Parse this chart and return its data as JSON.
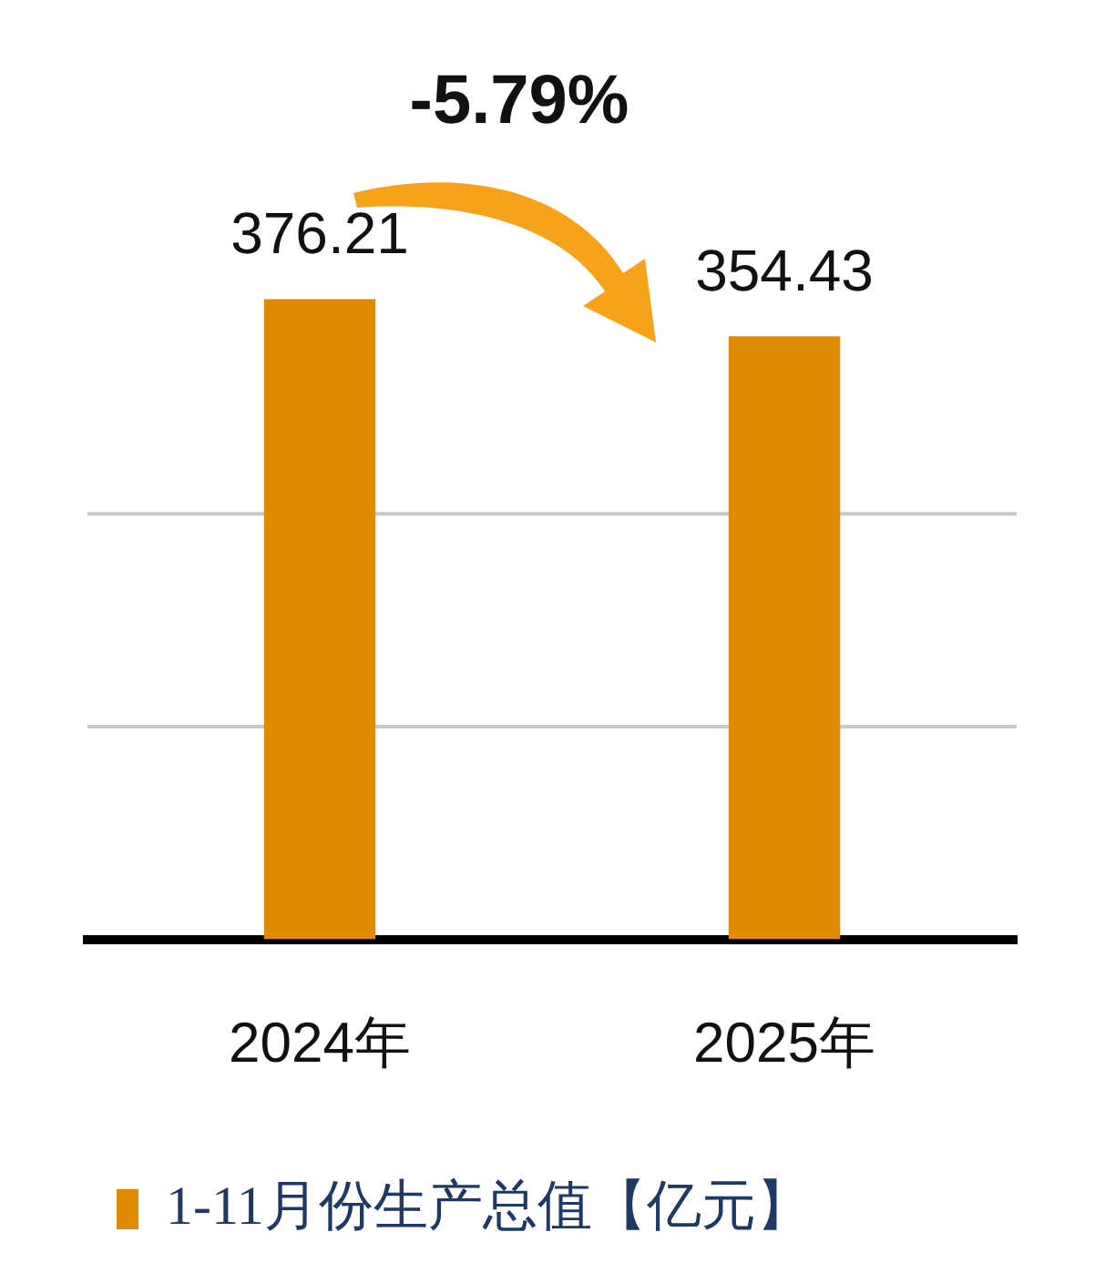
{
  "chart_data": {
    "type": "bar",
    "categories": [
      "2024年",
      "2025年"
    ],
    "series": [
      {
        "name": "1-11月份生产总值【亿元】",
        "color": "#e08a00",
        "values": [
          376.21,
          354.43
        ]
      }
    ],
    "ref_lines": [
      {
        "axis": "y",
        "value": 125,
        "color": "#c8c8c8"
      },
      {
        "axis": "y",
        "value": 250,
        "color": "#c8c8c8"
      }
    ],
    "tick_labels": "x",
    "legend": "bottom",
    "data_labels": true,
    "annotations": [
      "-5.79%"
    ]
  }
}
